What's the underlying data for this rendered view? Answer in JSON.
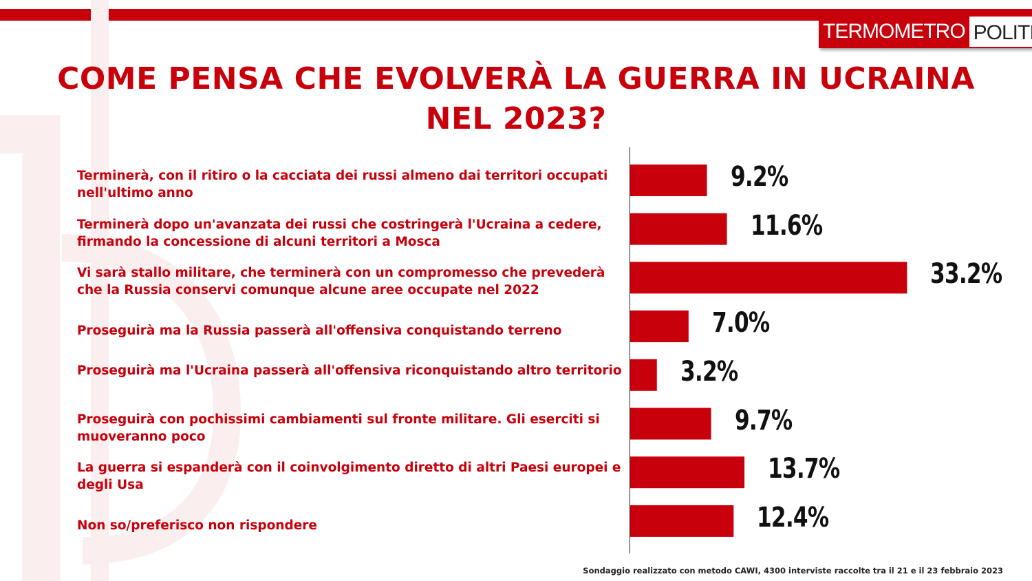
{
  "header": {
    "logo_part1": "TERMOMETRO",
    "logo_part2": "POLITICO",
    "title_line1": "COME PENSA CHE EVOLVERÀ LA GUERRA IN UCRAINA",
    "title_line2": "NEL 2023?"
  },
  "colors": {
    "accent": "#c8000b",
    "text_dark": "#111111"
  },
  "chart_data": {
    "type": "bar",
    "orientation": "horizontal",
    "title": "COME PENSA CHE EVOLVERÀ LA GUERRA IN UCRAINA NEL 2023?",
    "categories": [
      "Terminerà, con il ritiro o la cacciata dei russi almeno dai territori occupati nell'ultimo anno",
      "Terminerà dopo un'avanzata dei russi che costringerà l'Ucraina a cedere, firmando la concessione di alcuni territori a Mosca",
      "Vi sarà stallo militare, che terminerà con un compromesso che prevederà che la Russia conservi comunque alcune aree occupate nel 2022",
      "Proseguirà ma la Russia passerà all'offensiva conquistando terreno",
      "Proseguirà ma l'Ucraina passerà all'offensiva riconquistando altro territorio",
      "Proseguirà con pochissimi cambiamenti sul fronte militare. Gli eserciti si muoveranno poco",
      "La guerra si espanderà con il coinvolgimento diretto di altri Paesi europei e degli Usa",
      "Non so/preferisco non rispondere"
    ],
    "values": [
      9.2,
      11.6,
      33.2,
      7.0,
      3.2,
      9.7,
      13.7,
      12.4
    ],
    "value_labels": [
      "9.2%",
      "11.6%",
      "33.2%",
      "7.0%",
      "3.2%",
      "9.7%",
      "13.7%",
      "12.4%"
    ],
    "bar_color": "#c8000b"
  },
  "footnote": "Sondaggio realizzato con metodo CAWI, 4300 interviste raccolte tra il 21 e il 23 febbraio 2023"
}
